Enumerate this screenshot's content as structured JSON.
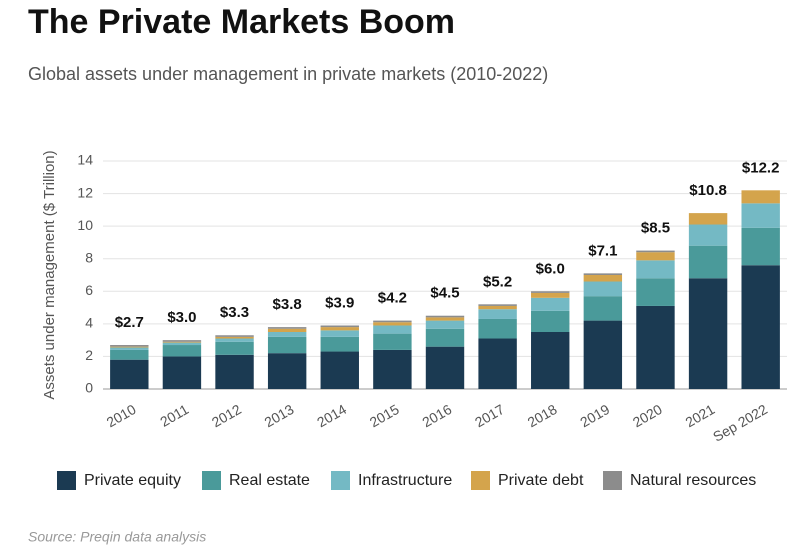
{
  "chart_data": {
    "type": "stacked_bar",
    "title": "The Private Markets Boom",
    "subtitle": "Global assets under management in private markets (2010-2022)",
    "y_label": "Assets under management ($ Trillion)",
    "source": "Source: Preqin data analysis",
    "categories": [
      "2010",
      "2011",
      "2012",
      "2013",
      "2014",
      "2015",
      "2016",
      "2017",
      "2018",
      "2019",
      "2020",
      "2021",
      "Sep 2022"
    ],
    "series": [
      {
        "name": "Private equity",
        "color": "#1b3a52",
        "values": [
          1.8,
          2.0,
          2.1,
          2.2,
          2.3,
          2.4,
          2.6,
          3.1,
          3.5,
          4.2,
          5.1,
          6.8,
          7.6
        ]
      },
      {
        "name": "Real estate",
        "color": "#4a9a9a",
        "values": [
          0.6,
          0.7,
          0.8,
          1.0,
          0.9,
          1.0,
          1.1,
          1.2,
          1.3,
          1.5,
          1.7,
          2.0,
          2.3
        ]
      },
      {
        "name": "Infrastructure",
        "color": "#74b9c4",
        "values": [
          0.15,
          0.15,
          0.2,
          0.3,
          0.4,
          0.5,
          0.5,
          0.6,
          0.8,
          0.9,
          1.1,
          1.3,
          1.5
        ]
      },
      {
        "name": "Private debt",
        "color": "#d4a44c",
        "values": [
          0.05,
          0.05,
          0.1,
          0.2,
          0.2,
          0.2,
          0.2,
          0.2,
          0.3,
          0.4,
          0.5,
          0.7,
          0.8
        ]
      },
      {
        "name": "Natural resources",
        "color": "#8c8c8c",
        "values": [
          0.1,
          0.1,
          0.1,
          0.1,
          0.1,
          0.1,
          0.1,
          0.1,
          0.1,
          0.1,
          0.1,
          0,
          0
        ]
      }
    ],
    "totals": {
      "values": [
        2.7,
        3.0,
        3.3,
        3.8,
        3.9,
        4.2,
        4.5,
        5.2,
        6.0,
        7.1,
        8.5,
        10.8,
        12.2
      ],
      "value_labels": [
        "$2.7",
        "$3.0",
        "$3.3",
        "$3.8",
        "$3.9",
        "$4.2",
        "$4.5",
        "$5.2",
        "$6.0",
        "$7.1",
        "$8.5",
        "$10.8",
        "$12.2"
      ]
    },
    "ylim": [
      0,
      14
    ],
    "yticks": [
      0,
      2,
      4,
      6,
      8,
      10,
      12,
      14
    ],
    "grid": true
  }
}
